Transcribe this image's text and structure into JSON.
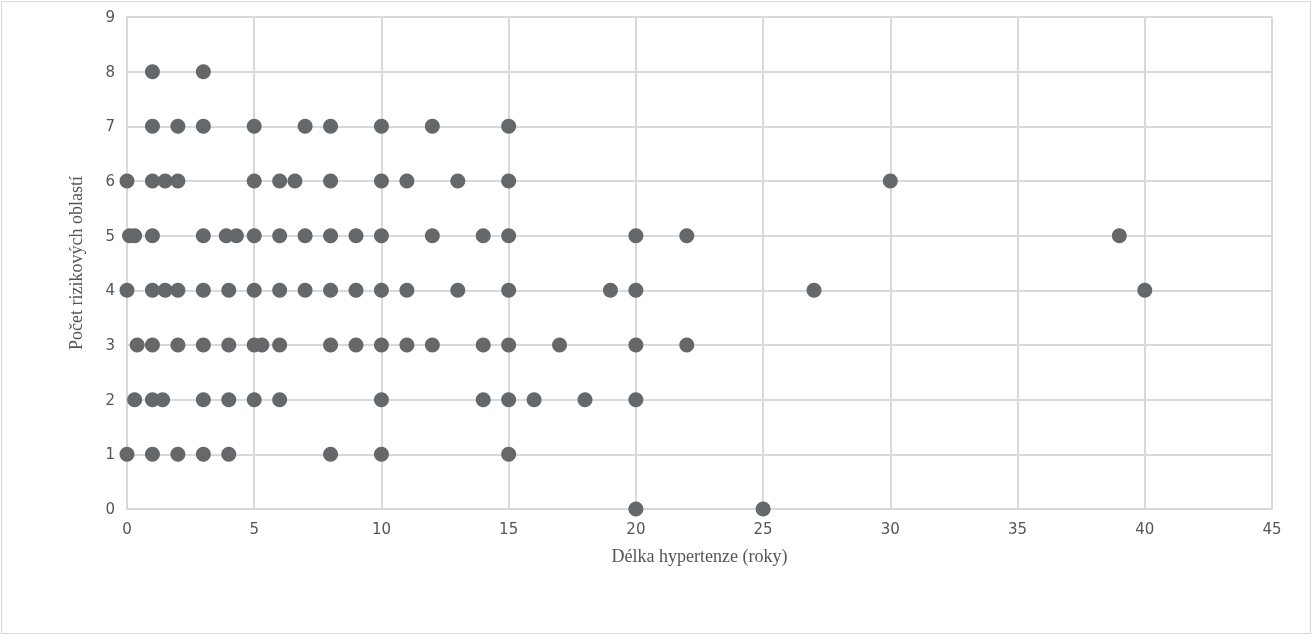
{
  "chart_data": {
    "type": "scatter",
    "xlabel": "Délka hypertenze (roky)",
    "ylabel": "Počet rizikových oblastí",
    "series": [
      {
        "color": "#65686b",
        "x": [
          1,
          3,
          1,
          2,
          3,
          5,
          7,
          8,
          10,
          12,
          15,
          0,
          1,
          1.5,
          2,
          5,
          6,
          6.6,
          8,
          10,
          11,
          13,
          15,
          30,
          0.1,
          0.3,
          1,
          3,
          3.9,
          4.3,
          5,
          6,
          7,
          8,
          9,
          10,
          12,
          14,
          15,
          20,
          22,
          39,
          0,
          1,
          1.5,
          2,
          3,
          4,
          5,
          6,
          7,
          8,
          9,
          10,
          11,
          13,
          15,
          19,
          20,
          27,
          40,
          0.4,
          1,
          2,
          3,
          4,
          5,
          5.3,
          6,
          8,
          9,
          10,
          11,
          12,
          14,
          15,
          17,
          20,
          22,
          0.3,
          1,
          1.4,
          3,
          4,
          5,
          6,
          10,
          14,
          15,
          16,
          18,
          20,
          0,
          1,
          2,
          3,
          4,
          8,
          10,
          15,
          20,
          25
        ],
        "values": [
          8,
          8,
          7,
          7,
          7,
          7,
          7,
          7,
          7,
          7,
          7,
          6,
          6,
          6,
          6,
          6,
          6,
          6,
          6,
          6,
          6,
          6,
          6,
          6,
          5,
          5,
          5,
          5,
          5,
          5,
          5,
          5,
          5,
          5,
          5,
          5,
          5,
          5,
          5,
          5,
          5,
          5,
          4,
          4,
          4,
          4,
          4,
          4,
          4,
          4,
          4,
          4,
          4,
          4,
          4,
          4,
          4,
          4,
          4,
          4,
          4,
          3,
          3,
          3,
          3,
          3,
          3,
          3,
          3,
          3,
          3,
          3,
          3,
          3,
          3,
          3,
          3,
          3,
          3,
          2,
          2,
          2,
          2,
          2,
          2,
          2,
          2,
          2,
          2,
          2,
          2,
          2,
          1,
          1,
          1,
          1,
          1,
          1,
          1,
          1,
          0,
          0
        ]
      }
    ],
    "xlim": [
      0,
      45
    ],
    "xticks": [
      0,
      5,
      10,
      15,
      20,
      25,
      30,
      35,
      40,
      45
    ],
    "ylim": [
      0,
      9
    ],
    "yticks": [
      0,
      1,
      2,
      3,
      4,
      5,
      6,
      7,
      8,
      9
    ],
    "grid": true,
    "marker": "circle"
  }
}
